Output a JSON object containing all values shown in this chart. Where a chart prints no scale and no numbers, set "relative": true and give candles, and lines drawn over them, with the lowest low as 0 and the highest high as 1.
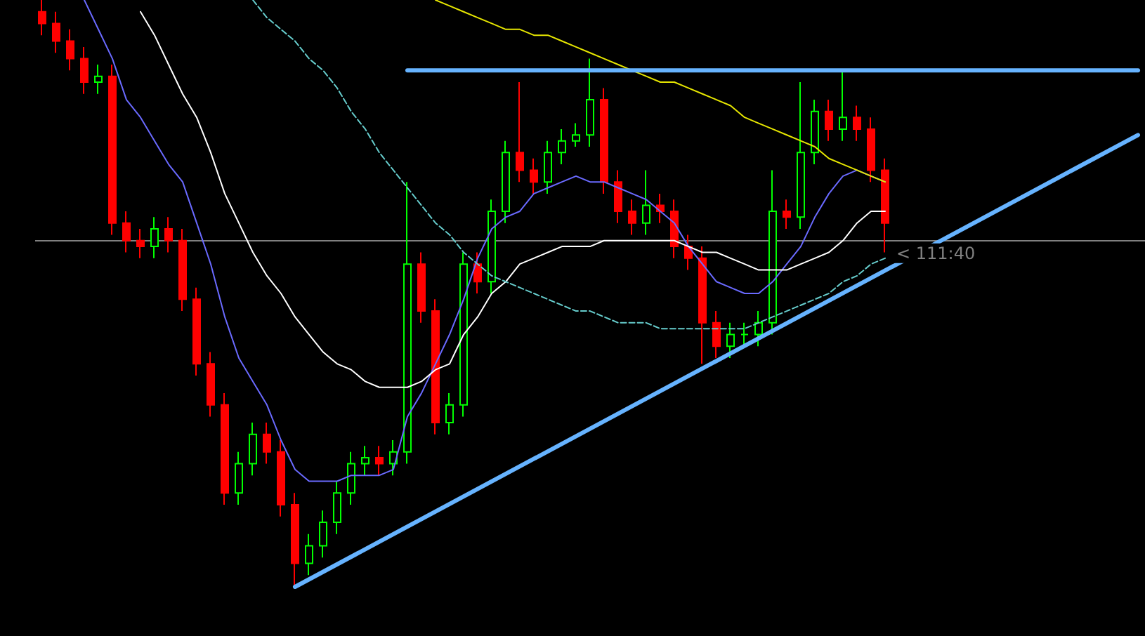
{
  "chart_data": {
    "type": "candlestick",
    "relative": true,
    "categories": [
      null,
      null,
      null,
      null,
      null,
      null,
      null,
      null,
      null,
      null,
      null,
      null,
      null,
      null,
      null,
      null,
      null,
      null,
      null,
      null,
      null,
      null,
      null,
      null,
      null,
      null,
      null,
      null,
      null,
      null,
      null,
      null,
      null,
      null,
      null,
      null,
      null,
      null,
      null,
      null,
      null,
      null,
      null,
      null,
      null,
      null,
      null,
      null,
      null,
      null,
      null,
      null,
      null,
      null,
      null,
      null,
      null,
      null,
      null,
      null,
      null,
      null,
      null,
      null,
      null,
      null,
      null,
      null,
      null,
      null,
      null,
      null,
      null,
      null,
      null,
      null,
      null,
      null,
      null
    ],
    "colors": [
      "#ff0000",
      "#ff0000",
      "#ff0000",
      "#ff0000",
      "#00ff00",
      "#ff0000",
      "#ff0000",
      "#ff0000",
      "#00ff00",
      "#ff0000",
      "#ff0000",
      "#ff0000",
      "#ff0000",
      "#ff0000",
      "#00ff00",
      "#00ff00",
      "#ff0000",
      "#ff0000",
      "#ff0000",
      "#00ff00",
      "#00ff00",
      "#00ff00",
      "#00ff00",
      "#00ff00",
      "#ff0000",
      "#00ff00",
      "#00ff00",
      "#ff0000",
      "#ff0000",
      "#00ff00",
      "#00ff00",
      "#ff0000",
      "#00ff00",
      "#00ff00",
      "#ff0000",
      "#ff0000",
      "#00ff00",
      "#00ff00",
      "#00ff00",
      "#00ff00",
      "#ff0000",
      "#ff0000",
      "#ff0000",
      "#00ff00",
      "#ff0000",
      "#ff0000",
      "#ff0000",
      "#ff0000",
      "#ff0000",
      "#00ff00",
      "#00ff00",
      "#00ff00",
      "#00ff00",
      "#ff0000",
      "#00ff00",
      "#00ff00",
      "#ff0000",
      "#00ff00",
      "#ff0000",
      "#ff0000",
      "#ff0000",
      null,
      null,
      null,
      null,
      null,
      null,
      null,
      null,
      null,
      null,
      null,
      null,
      null,
      null,
      null,
      null,
      null,
      null
    ],
    "ohlc": [
      [
        0.98,
        1.0,
        0.94,
        0.96
      ],
      [
        0.96,
        0.98,
        0.91,
        0.93
      ],
      [
        0.93,
        0.95,
        0.88,
        0.9
      ],
      [
        0.9,
        0.92,
        0.84,
        0.86
      ],
      [
        0.86,
        0.89,
        0.84,
        0.87
      ],
      [
        0.87,
        0.89,
        0.6,
        0.62
      ],
      [
        0.62,
        0.64,
        0.57,
        0.59
      ],
      [
        0.59,
        0.61,
        0.56,
        0.58
      ],
      [
        0.58,
        0.63,
        0.56,
        0.61
      ],
      [
        0.61,
        0.63,
        0.57,
        0.59
      ],
      [
        0.59,
        0.61,
        0.47,
        0.49
      ],
      [
        0.49,
        0.51,
        0.36,
        0.38
      ],
      [
        0.38,
        0.4,
        0.29,
        0.31
      ],
      [
        0.31,
        0.33,
        0.14,
        0.16
      ],
      [
        0.16,
        0.23,
        0.14,
        0.21
      ],
      [
        0.21,
        0.28,
        0.19,
        0.26
      ],
      [
        0.26,
        0.28,
        0.21,
        0.23
      ],
      [
        0.23,
        0.25,
        0.12,
        0.14
      ],
      [
        0.14,
        0.16,
        0.0,
        0.04
      ],
      [
        0.04,
        0.09,
        0.02,
        0.07
      ],
      [
        0.07,
        0.13,
        0.05,
        0.11
      ],
      [
        0.11,
        0.18,
        0.09,
        0.16
      ],
      [
        0.16,
        0.23,
        0.14,
        0.21
      ],
      [
        0.21,
        0.24,
        0.19,
        0.22
      ],
      [
        0.22,
        0.24,
        0.19,
        0.21
      ],
      [
        0.21,
        0.25,
        0.19,
        0.23
      ],
      [
        0.23,
        0.69,
        0.21,
        0.55
      ],
      [
        0.55,
        0.57,
        0.45,
        0.47
      ],
      [
        0.47,
        0.49,
        0.26,
        0.28
      ],
      [
        0.28,
        0.33,
        0.26,
        0.31
      ],
      [
        0.31,
        0.57,
        0.29,
        0.55
      ],
      [
        0.55,
        0.57,
        0.5,
        0.52
      ],
      [
        0.52,
        0.66,
        0.5,
        0.64
      ],
      [
        0.64,
        0.76,
        0.62,
        0.74
      ],
      [
        0.74,
        0.86,
        0.69,
        0.71
      ],
      [
        0.71,
        0.73,
        0.67,
        0.69
      ],
      [
        0.69,
        0.76,
        0.67,
        0.74
      ],
      [
        0.74,
        0.78,
        0.72,
        0.76
      ],
      [
        0.76,
        0.79,
        0.75,
        0.77
      ],
      [
        0.77,
        0.9,
        0.75,
        0.83
      ],
      [
        0.83,
        0.85,
        0.67,
        0.69
      ],
      [
        0.69,
        0.71,
        0.62,
        0.64
      ],
      [
        0.64,
        0.66,
        0.6,
        0.62
      ],
      [
        0.62,
        0.71,
        0.6,
        0.65
      ],
      [
        0.65,
        0.67,
        0.62,
        0.64
      ],
      [
        0.64,
        0.66,
        0.56,
        0.58
      ],
      [
        0.58,
        0.6,
        0.54,
        0.56
      ],
      [
        0.56,
        0.58,
        0.38,
        0.45
      ],
      [
        0.45,
        0.47,
        0.39,
        0.41
      ],
      [
        0.41,
        0.45,
        0.39,
        0.43
      ],
      [
        0.43,
        0.45,
        0.41,
        0.43
      ],
      [
        0.43,
        0.47,
        0.41,
        0.45
      ],
      [
        0.45,
        0.71,
        0.43,
        0.64
      ],
      [
        0.64,
        0.66,
        0.61,
        0.63
      ],
      [
        0.63,
        0.86,
        0.61,
        0.74
      ],
      [
        0.74,
        0.83,
        0.72,
        0.81
      ],
      [
        0.81,
        0.83,
        0.76,
        0.78
      ],
      [
        0.78,
        0.88,
        0.76,
        0.8
      ],
      [
        0.8,
        0.82,
        0.76,
        0.78
      ],
      [
        0.78,
        0.8,
        0.69,
        0.71
      ],
      [
        0.71,
        0.73,
        0.57,
        0.62
      ],
      null,
      null,
      null,
      null,
      null,
      null,
      null,
      null,
      null,
      null,
      null,
      null,
      null,
      null,
      null,
      null,
      null,
      null
    ],
    "series": [
      {
        "type": "line",
        "color": "#6a6aff",
        "values": [
          null,
          null,
          null,
          1.0,
          0.95,
          0.9,
          0.83,
          0.8,
          0.76,
          0.72,
          0.69,
          0.62,
          0.55,
          0.46,
          0.39,
          0.35,
          0.31,
          0.25,
          0.2,
          0.18,
          0.18,
          0.18,
          0.19,
          0.19,
          0.19,
          0.2,
          0.29,
          0.33,
          0.38,
          0.43,
          0.49,
          0.56,
          0.61,
          0.63,
          0.64,
          0.67,
          0.68,
          0.69,
          0.7,
          0.69,
          0.69,
          0.68,
          0.67,
          0.66,
          0.64,
          0.62,
          0.58,
          0.55,
          0.52,
          0.51,
          0.5,
          0.5,
          0.52,
          0.55,
          0.58,
          0.63,
          0.67,
          0.7,
          0.71,
          0.7,
          0.69,
          null,
          null,
          null,
          null,
          null,
          null,
          null,
          null,
          null,
          null,
          null,
          null,
          null,
          null,
          null,
          null,
          null,
          null
        ]
      },
      {
        "type": "line",
        "color": "#ffffff",
        "values": [
          null,
          null,
          null,
          null,
          null,
          null,
          null,
          0.98,
          0.94,
          0.89,
          0.84,
          0.8,
          0.74,
          0.67,
          0.62,
          0.57,
          0.53,
          0.5,
          0.46,
          0.43,
          0.4,
          0.38,
          0.37,
          0.35,
          0.34,
          0.34,
          0.34,
          0.35,
          0.37,
          0.38,
          0.43,
          0.46,
          0.5,
          0.52,
          0.55,
          0.56,
          0.57,
          0.58,
          0.58,
          0.58,
          0.59,
          0.59,
          0.59,
          0.59,
          0.59,
          0.59,
          0.58,
          0.57,
          0.57,
          0.56,
          0.55,
          0.54,
          0.54,
          0.54,
          0.55,
          0.56,
          0.57,
          0.59,
          0.62,
          0.64,
          0.64,
          null,
          null,
          null,
          null,
          null,
          null,
          null,
          null,
          null,
          null,
          null,
          null,
          null,
          null,
          null,
          null,
          null,
          null
        ]
      },
      {
        "type": "line",
        "color": "#e6e600",
        "values": [
          null,
          null,
          null,
          null,
          null,
          null,
          null,
          null,
          null,
          null,
          null,
          null,
          null,
          null,
          null,
          null,
          null,
          null,
          null,
          null,
          null,
          null,
          null,
          null,
          null,
          null,
          null,
          null,
          1.0,
          0.99,
          0.98,
          0.97,
          0.96,
          0.95,
          0.95,
          0.94,
          0.94,
          0.93,
          0.92,
          0.91,
          0.9,
          0.89,
          0.88,
          0.87,
          0.86,
          0.86,
          0.85,
          0.84,
          0.83,
          0.82,
          0.8,
          0.79,
          0.78,
          0.77,
          0.76,
          0.75,
          0.73,
          0.72,
          0.71,
          0.7,
          0.69,
          null,
          null,
          null,
          null,
          null,
          null,
          null,
          null,
          null,
          null,
          null,
          null,
          null,
          null,
          null,
          null,
          null,
          null
        ]
      },
      {
        "type": "line",
        "color": "#66cccc",
        "line_style": "dashed",
        "values": [
          null,
          null,
          null,
          null,
          null,
          null,
          null,
          null,
          null,
          null,
          null,
          null,
          null,
          null,
          null,
          1.0,
          0.97,
          0.95,
          0.93,
          0.9,
          0.88,
          0.85,
          0.81,
          0.78,
          0.74,
          0.71,
          0.68,
          0.65,
          0.62,
          0.6,
          0.57,
          0.55,
          0.53,
          0.52,
          0.51,
          0.5,
          0.49,
          0.48,
          0.47,
          0.47,
          0.46,
          0.45,
          0.45,
          0.45,
          0.44,
          0.44,
          0.44,
          0.44,
          0.44,
          0.44,
          0.44,
          0.45,
          0.46,
          0.47,
          0.48,
          0.49,
          0.5,
          0.52,
          0.53,
          0.55,
          0.56,
          null,
          null,
          null,
          null,
          null,
          null,
          null,
          null,
          null,
          null,
          null,
          null,
          null,
          null,
          null,
          null,
          null,
          null
        ]
      },
      {
        "type": "line",
        "color": "#66b3ff",
        "values": [
          null,
          null,
          null,
          null,
          null,
          null,
          null,
          null,
          null,
          null,
          null,
          null,
          null,
          null,
          null,
          null,
          null,
          null,
          0.0,
          null,
          null,
          null,
          null,
          null,
          null,
          null,
          null,
          null,
          null,
          null,
          null,
          null,
          null,
          null,
          null,
          null,
          null,
          null,
          null,
          null,
          null,
          null,
          null,
          null,
          null,
          null,
          null,
          null,
          null,
          null,
          null,
          null,
          null,
          null,
          null,
          null,
          null,
          null,
          null,
          null,
          null,
          null,
          null,
          null,
          null,
          null,
          null,
          null,
          null,
          null,
          null,
          null,
          null,
          null,
          null,
          null,
          null,
          null,
          0.77
        ]
      },
      {
        "type": "line",
        "color": "#66b3ff",
        "values": [
          null,
          null,
          null,
          null,
          null,
          null,
          null,
          null,
          null,
          null,
          null,
          null,
          null,
          null,
          null,
          null,
          null,
          null,
          null,
          null,
          null,
          null,
          null,
          null,
          null,
          null,
          0.88,
          null,
          null,
          null,
          null,
          null,
          null,
          null,
          null,
          null,
          null,
          null,
          null,
          null,
          null,
          null,
          null,
          null,
          null,
          null,
          null,
          null,
          null,
          null,
          null,
          null,
          null,
          null,
          null,
          null,
          null,
          null,
          null,
          null,
          null,
          null,
          null,
          null,
          null,
          null,
          null,
          null,
          null,
          null,
          null,
          null,
          null,
          null,
          null,
          null,
          null,
          null,
          0.88
        ]
      }
    ],
    "ref_lines": [
      {
        "axis": "y",
        "value": 0.59,
        "color": "#808080"
      }
    ],
    "annotations": [
      {
        "text": "< 111:40",
        "y": 0.59
      }
    ]
  }
}
